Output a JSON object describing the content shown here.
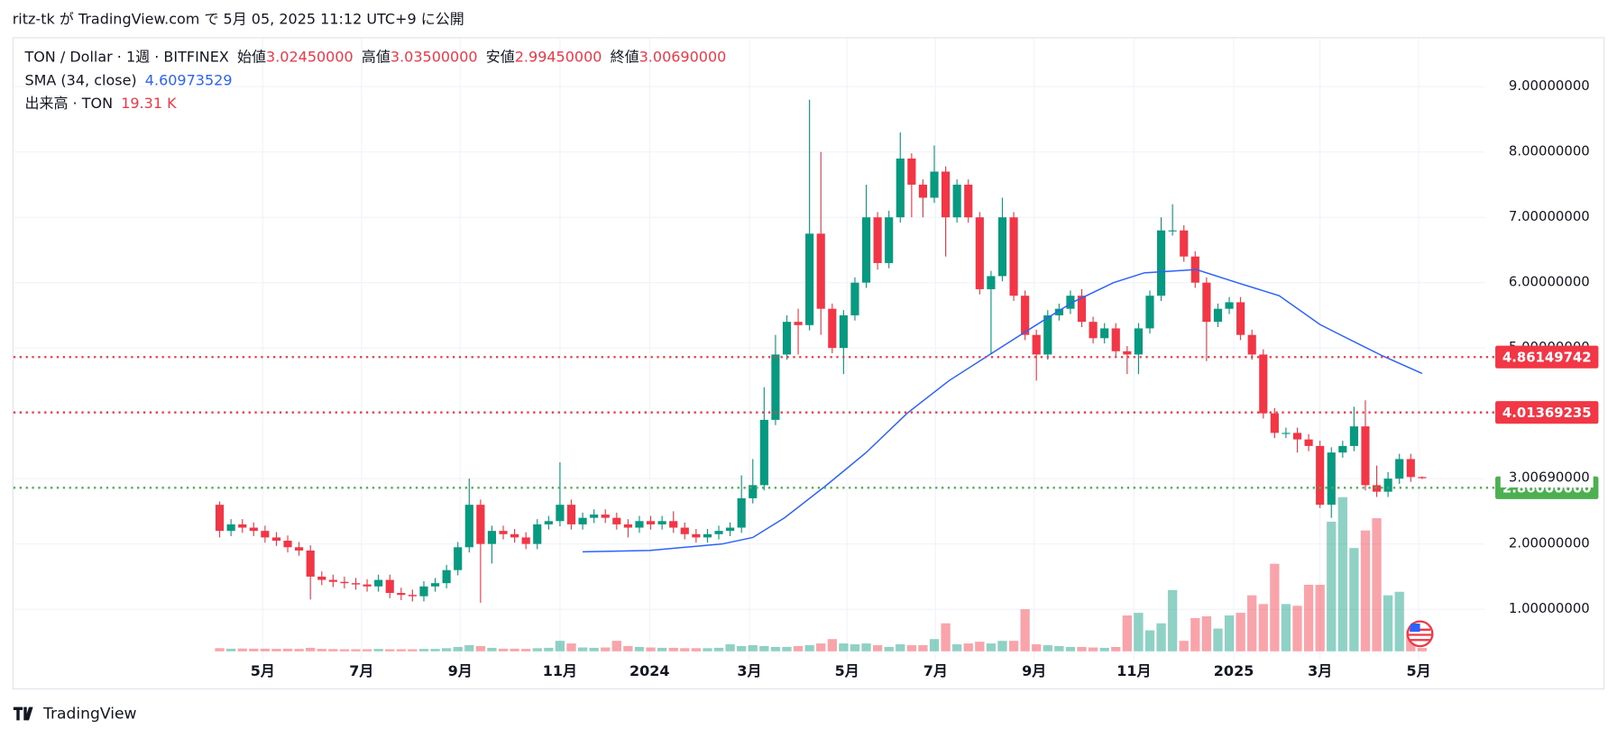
{
  "header": {
    "published": "ritz-tk が TradingView.com で 5月 05, 2025 11:12 UTC+9 に公開",
    "symbol": "TON / Dollar · 1週 · BITFINEX",
    "open_label": "始値",
    "open": "3.02450000",
    "high_label": "高値",
    "high": "3.03500000",
    "low_label": "安値",
    "low": "2.99450000",
    "close_label": "終値",
    "close": "3.00690000",
    "sma_label": "SMA (34, close)",
    "sma": "4.60973529",
    "volume_label": "出来高 · TON",
    "volume": "19.31 K"
  },
  "footer": {
    "logo": "TradingView"
  },
  "chart_data": {
    "type": "candlestick",
    "up_color": "#089981",
    "down_color": "#f23645",
    "sma_color": "#2962ff",
    "open": [
      2.6,
      2.2,
      2.3,
      2.25,
      2.2,
      2.1,
      2.05,
      1.95,
      1.9,
      1.5,
      1.45,
      1.42,
      1.4,
      1.38,
      1.35,
      1.45,
      1.25,
      1.22,
      1.2,
      1.35,
      1.4,
      1.6,
      1.95,
      2.6,
      2.0,
      2.2,
      2.15,
      2.1,
      2.0,
      2.3,
      2.35,
      2.6,
      2.3,
      2.4,
      2.45,
      2.4,
      2.3,
      2.25,
      2.35,
      2.3,
      2.35,
      2.25,
      2.15,
      2.1,
      2.15,
      2.2,
      2.25,
      2.7,
      2.9,
      3.9,
      4.9,
      5.4,
      5.35,
      6.75,
      5.6,
      5.0,
      5.5,
      6.0,
      7.0,
      6.3,
      7.0,
      7.9,
      7.5,
      7.3,
      7.7,
      7.0,
      7.5,
      7.0,
      5.9,
      6.1,
      7.0,
      5.8,
      5.2,
      4.9,
      5.5,
      5.6,
      5.8,
      5.4,
      5.15,
      5.3,
      4.95,
      4.9,
      5.3,
      5.8,
      6.8,
      6.8,
      6.4,
      6.0,
      5.4,
      5.6,
      5.7,
      5.2,
      4.9,
      4.0,
      3.7,
      3.7,
      3.6,
      3.5,
      2.6,
      3.4,
      3.5,
      3.8,
      2.9,
      2.8,
      3.0,
      3.3,
      3.0245
    ],
    "high": [
      2.65,
      2.38,
      2.38,
      2.33,
      2.28,
      2.18,
      2.13,
      2.03,
      1.98,
      1.58,
      1.53,
      1.5,
      1.48,
      1.46,
      1.53,
      1.53,
      1.33,
      1.3,
      1.43,
      1.48,
      1.68,
      2.03,
      3.0,
      2.68,
      2.28,
      2.28,
      2.23,
      2.18,
      2.38,
      2.43,
      3.25,
      2.68,
      2.48,
      2.53,
      2.53,
      2.48,
      2.38,
      2.43,
      2.43,
      2.43,
      2.5,
      2.33,
      2.23,
      2.23,
      2.28,
      2.33,
      3.05,
      3.3,
      4.4,
      5.2,
      5.5,
      5.6,
      8.8,
      8.0,
      5.68,
      5.58,
      6.08,
      7.5,
      7.08,
      7.1,
      8.3,
      7.98,
      7.58,
      8.1,
      7.78,
      7.58,
      7.58,
      7.08,
      6.18,
      7.3,
      7.08,
      5.88,
      5.28,
      5.58,
      5.68,
      5.88,
      5.9,
      5.48,
      5.38,
      5.38,
      5.03,
      5.38,
      5.88,
      7.0,
      7.2,
      6.88,
      6.48,
      6.08,
      5.68,
      5.78,
      5.78,
      5.28,
      4.98,
      4.08,
      3.78,
      3.78,
      3.68,
      3.58,
      3.48,
      3.58,
      4.1,
      4.2,
      3.2,
      3.1,
      3.38,
      3.38,
      3.035
    ],
    "low": [
      2.1,
      2.12,
      2.17,
      2.12,
      2.02,
      1.97,
      1.87,
      1.82,
      1.15,
      1.37,
      1.34,
      1.32,
      1.3,
      1.27,
      1.27,
      1.17,
      1.14,
      1.12,
      1.12,
      1.27,
      1.32,
      1.52,
      1.87,
      1.1,
      1.7,
      2.07,
      2.02,
      1.92,
      1.92,
      2.22,
      2.27,
      2.22,
      2.22,
      2.32,
      2.32,
      2.22,
      2.1,
      2.17,
      2.22,
      2.22,
      2.17,
      2.07,
      2.02,
      2.02,
      2.07,
      2.12,
      2.17,
      2.62,
      2.82,
      3.82,
      4.82,
      4.9,
      5.27,
      5.2,
      4.92,
      4.6,
      5.42,
      5.92,
      6.2,
      6.22,
      6.92,
      7.0,
      7.0,
      7.22,
      6.4,
      6.92,
      6.92,
      5.82,
      4.9,
      6.02,
      5.72,
      5.12,
      4.5,
      4.82,
      5.42,
      5.52,
      5.32,
      5.07,
      5.07,
      4.87,
      4.6,
      4.6,
      5.22,
      5.72,
      6.72,
      6.32,
      5.92,
      4.8,
      5.32,
      5.52,
      5.12,
      4.82,
      3.92,
      3.62,
      3.62,
      3.4,
      3.42,
      2.55,
      2.4,
      3.32,
      3.42,
      2.82,
      2.72,
      2.72,
      2.92,
      2.95,
      2.9945
    ],
    "close": [
      2.2,
      2.3,
      2.25,
      2.2,
      2.1,
      2.05,
      1.95,
      1.9,
      1.5,
      1.45,
      1.42,
      1.4,
      1.38,
      1.35,
      1.45,
      1.25,
      1.22,
      1.2,
      1.35,
      1.4,
      1.6,
      1.95,
      2.6,
      2.0,
      2.2,
      2.15,
      2.1,
      2.0,
      2.3,
      2.35,
      2.6,
      2.3,
      2.4,
      2.45,
      2.4,
      2.3,
      2.25,
      2.35,
      2.3,
      2.35,
      2.25,
      2.15,
      2.1,
      2.15,
      2.2,
      2.25,
      2.7,
      2.9,
      3.9,
      4.9,
      5.4,
      5.35,
      6.75,
      5.6,
      5.0,
      5.5,
      6.0,
      7.0,
      6.3,
      7.0,
      7.9,
      7.5,
      7.3,
      7.7,
      7.0,
      7.5,
      7.0,
      5.9,
      6.1,
      7.0,
      5.8,
      5.2,
      4.9,
      5.5,
      5.6,
      5.8,
      5.4,
      5.15,
      5.3,
      4.95,
      4.9,
      5.3,
      5.8,
      6.8,
      6.8,
      6.4,
      6.0,
      5.4,
      5.6,
      5.7,
      5.2,
      4.9,
      4.0,
      3.7,
      3.7,
      3.6,
      3.5,
      2.6,
      3.4,
      3.5,
      3.8,
      2.9,
      2.8,
      3.0,
      3.3,
      3.0245,
      3.0069
    ],
    "volume": [
      18,
      15,
      16,
      15,
      15,
      14,
      15,
      14,
      20,
      14,
      13,
      12,
      12,
      12,
      14,
      12,
      12,
      12,
      14,
      14,
      18,
      25,
      35,
      30,
      20,
      15,
      15,
      14,
      18,
      20,
      60,
      45,
      22,
      20,
      22,
      60,
      30,
      25,
      22,
      20,
      20,
      18,
      18,
      18,
      20,
      40,
      30,
      35,
      30,
      25,
      25,
      30,
      35,
      45,
      70,
      45,
      40,
      45,
      35,
      25,
      40,
      35,
      35,
      70,
      160,
      40,
      45,
      55,
      45,
      60,
      60,
      240,
      40,
      35,
      30,
      25,
      25,
      22,
      20,
      25,
      205,
      220,
      120,
      160,
      350,
      60,
      190,
      200,
      130,
      205,
      220,
      320,
      270,
      500,
      270,
      260,
      380,
      380,
      740,
      880,
      590,
      690,
      760,
      320,
      340,
      120,
      19.31
    ],
    "vlim": [
      0,
      1000
    ],
    "sma": {
      "x": [
        32,
        37.9,
        44.3,
        47,
        49.8,
        53.5,
        57,
        60.6,
        64.3,
        67.9,
        71.5,
        75.2,
        78.8,
        81.5,
        86.1,
        89.7,
        93.4,
        97,
        98.8,
        102.5,
        106
      ],
      "values": [
        1.88,
        1.9,
        2.0,
        2.1,
        2.4,
        2.9,
        3.4,
        4.0,
        4.5,
        4.9,
        5.3,
        5.7,
        6.0,
        6.15,
        6.2,
        6.0,
        5.8,
        5.36,
        5.2,
        4.88,
        4.61
      ]
    },
    "ylim": [
      0,
      9.5
    ],
    "yticks": [
      {
        "value": 1,
        "label": "1.00000000"
      },
      {
        "value": 2,
        "label": "2.00000000"
      },
      {
        "value": 3,
        "label": "3.00000000"
      },
      {
        "value": 5,
        "label": "5.00000000"
      },
      {
        "value": 6,
        "label": "6.00000000"
      },
      {
        "value": 7,
        "label": "7.00000000"
      },
      {
        "value": 8,
        "label": "8.00000000"
      },
      {
        "value": 9,
        "label": "9.00000000"
      }
    ],
    "xlim": [
      -1,
      115
    ],
    "xticks": [
      {
        "value": 3.8,
        "label": "5月"
      },
      {
        "value": 12.5,
        "label": "7月"
      },
      {
        "value": 21.2,
        "label": "9月"
      },
      {
        "value": 30,
        "label": "11月"
      },
      {
        "value": 37.9,
        "label": "2024"
      },
      {
        "value": 46.7,
        "label": "3月"
      },
      {
        "value": 55.3,
        "label": "5月"
      },
      {
        "value": 63.1,
        "label": "7月"
      },
      {
        "value": 71.8,
        "label": "9月"
      },
      {
        "value": 80.6,
        "label": "11月"
      },
      {
        "value": 89.4,
        "label": "2025"
      },
      {
        "value": 97,
        "label": "3月"
      },
      {
        "value": 105.7,
        "label": "5月"
      }
    ],
    "price_lines": [
      {
        "value": 4.86149742,
        "label": "4.86149742",
        "color": "#f23645"
      },
      {
        "value": 4.01369235,
        "label": "4.01369235",
        "color": "#f23645"
      },
      {
        "value": 2.86,
        "label": "2.86000000",
        "color": "#4caf50"
      }
    ],
    "last_price": {
      "value": 3.0069,
      "label": "3.00690000"
    },
    "grid": true
  }
}
